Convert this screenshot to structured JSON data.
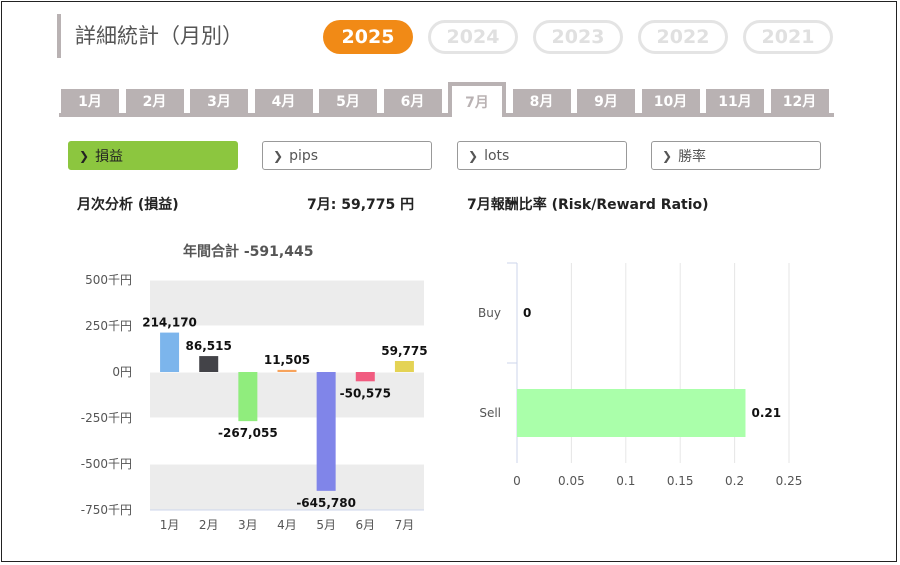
{
  "page_title": "詳細統計（月別）",
  "years": [
    {
      "label": "2025",
      "active": true
    },
    {
      "label": "2024",
      "active": false
    },
    {
      "label": "2023",
      "active": false
    },
    {
      "label": "2022",
      "active": false
    },
    {
      "label": "2021",
      "active": false
    }
  ],
  "months": [
    "1月",
    "2月",
    "3月",
    "4月",
    "5月",
    "6月",
    "7月",
    "8月",
    "9月",
    "10月",
    "11月",
    "12月"
  ],
  "active_month_index": 6,
  "metrics": [
    {
      "label": "損益",
      "active": true
    },
    {
      "label": "pips",
      "active": false
    },
    {
      "label": "lots",
      "active": false
    },
    {
      "label": "勝率",
      "active": false
    }
  ],
  "monthly_heading": "月次分析 (損益)",
  "month_summary": "7月:  59,775 円",
  "ratio_heading": "7月報酬比率 (Risk/Reward Ratio)",
  "colors": {
    "accent": "#f18a16",
    "tab": "#b9b2b3",
    "active_metric": "#8cc63f"
  },
  "chart_data": [
    {
      "type": "bar",
      "title": "年間合計 -591,445",
      "categories": [
        "1月",
        "2月",
        "3月",
        "4月",
        "5月",
        "6月",
        "7月"
      ],
      "values": [
        214170,
        86515,
        -267055,
        11505,
        -645780,
        -50575,
        59775
      ],
      "data_labels": [
        "214,170",
        "86,515",
        "-267,055",
        "11,505",
        "-645,780",
        "-50,575",
        "59,775"
      ],
      "colors": [
        "#7cb5ec",
        "#434348",
        "#90ed7d",
        "#f7a35c",
        "#8085e9",
        "#f15c80",
        "#e4d354"
      ],
      "y_ticks": [
        500000,
        250000,
        0,
        -250000,
        -500000,
        -750000
      ],
      "y_tick_labels": [
        "500千円",
        "250千円",
        "0円",
        "-250千円",
        "-500千円",
        "-750千円"
      ],
      "ylim": [
        -750000,
        500000
      ],
      "grid": "alternate bands"
    },
    {
      "type": "bar",
      "orientation": "horizontal",
      "categories": [
        "Buy",
        "Sell"
      ],
      "values": [
        0,
        0.21
      ],
      "data_labels": [
        "0",
        "0.21"
      ],
      "x_ticks": [
        0,
        0.05,
        0.1,
        0.15,
        0.2,
        0.25
      ],
      "x_tick_labels": [
        "0",
        "0.05",
        "0.1",
        "0.15",
        "0.2",
        "0.25"
      ],
      "xlim": [
        0,
        0.25
      ],
      "bar_color": "#aaffaa",
      "grid": true
    }
  ]
}
